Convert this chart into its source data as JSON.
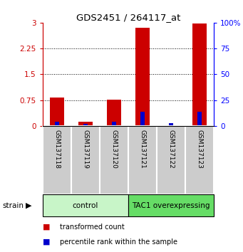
{
  "title": "GDS2451 / 264117_at",
  "samples": [
    "GSM137118",
    "GSM137119",
    "GSM137120",
    "GSM137121",
    "GSM137122",
    "GSM137123"
  ],
  "red_values": [
    0.82,
    0.12,
    0.77,
    2.85,
    0.0,
    2.97
  ],
  "blue_values": [
    4,
    2,
    4,
    14,
    3,
    14
  ],
  "ylim_left": [
    0,
    3
  ],
  "ylim_right": [
    0,
    100
  ],
  "yticks_left": [
    0,
    0.75,
    1.5,
    2.25,
    3
  ],
  "yticks_right": [
    0,
    25,
    50,
    75,
    100
  ],
  "ytick_labels_left": [
    "0",
    "0.75",
    "1.5",
    "2.25",
    "3"
  ],
  "ytick_labels_right": [
    "0",
    "25",
    "50",
    "75",
    "100%"
  ],
  "groups": [
    {
      "label": "control",
      "indices": [
        0,
        1,
        2
      ],
      "color": "#c8f5c8"
    },
    {
      "label": "TAC1 overexpressing",
      "indices": [
        3,
        4,
        5
      ],
      "color": "#66dd66"
    }
  ],
  "red_bar_width": 0.5,
  "blue_bar_width": 0.15,
  "red_color": "#cc0000",
  "blue_color": "#0000cc",
  "strain_label": "strain",
  "legend_red": "transformed count",
  "legend_blue": "percentile rank within the sample",
  "bg_color": "#ffffff",
  "label_area_color": "#cccccc"
}
